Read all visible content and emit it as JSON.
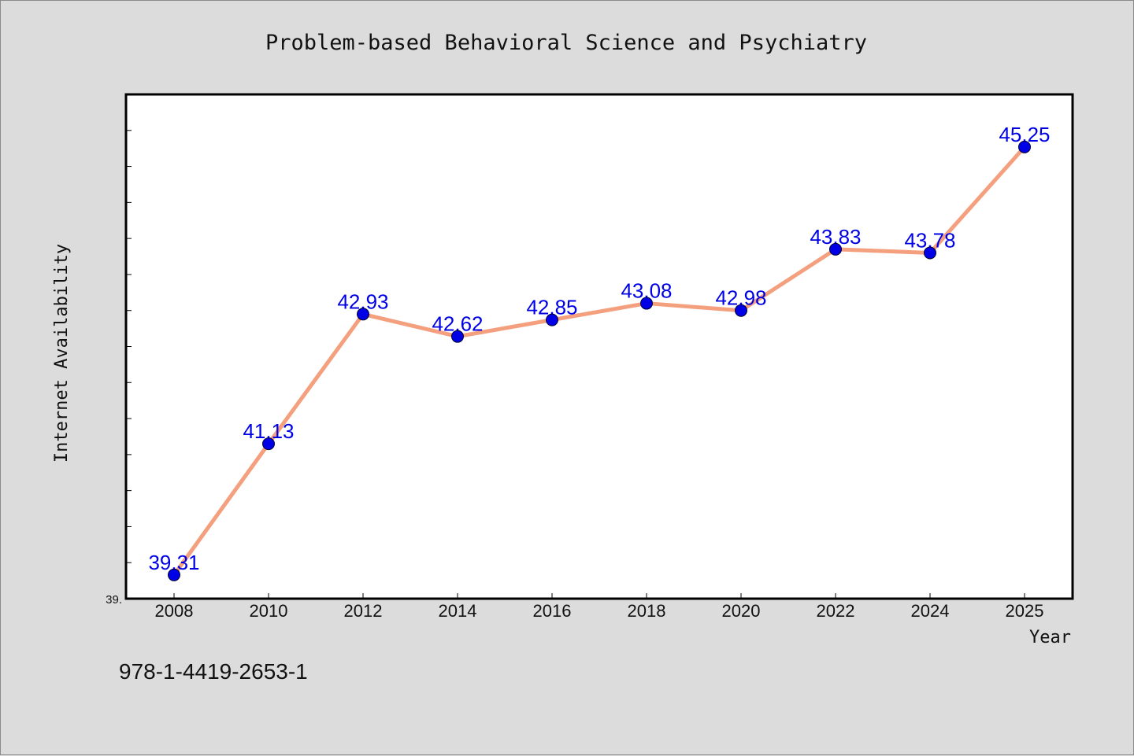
{
  "chart_data": {
    "type": "line",
    "title": "Problem-based Behavioral Science and Psychiatry",
    "xlabel": "Year",
    "ylabel": "Internet Availability",
    "x": [
      "2008",
      "2010",
      "2012",
      "2014",
      "2016",
      "2018",
      "2020",
      "2022",
      "2024",
      "2025"
    ],
    "series": [
      {
        "values": [
          39.31,
          41.13,
          42.93,
          42.62,
          42.85,
          43.08,
          42.98,
          43.83,
          43.78,
          45.25
        ],
        "labels": [
          "39.31",
          "41.13",
          "42.93",
          "42.62",
          "42.85",
          "43.08",
          "42.98",
          "43.83",
          "43.78",
          "45.25"
        ],
        "line_color": "#f4a07e",
        "marker_color": "#0000e6",
        "label_color": "#0000e6"
      }
    ],
    "ylim": [
      38.98,
      45.98
    ],
    "y_min_label": "39.",
    "grid": false,
    "legend": "none"
  },
  "footer": {
    "isbn": "978-1-4419-2653-1"
  },
  "colors": {
    "background": "#dcdcdc",
    "plot_background": "#ffffff",
    "axis": "#000000"
  }
}
